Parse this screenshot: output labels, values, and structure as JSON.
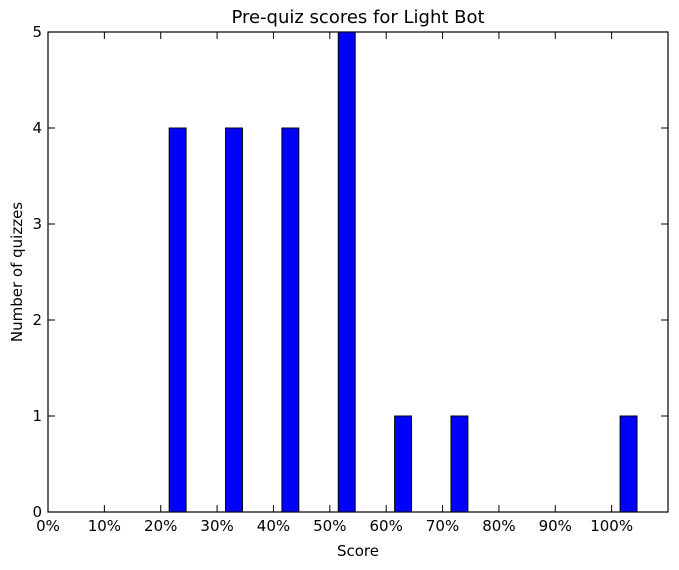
{
  "chart_data": {
    "type": "bar",
    "title": "Pre-quiz scores for Light Bot",
    "xlabel": "Score",
    "ylabel": "Number of quizzes",
    "x_ticks": [
      0,
      10,
      20,
      30,
      40,
      50,
      60,
      70,
      80,
      90,
      100
    ],
    "x_tick_labels": [
      "0%",
      "10%",
      "20%",
      "30%",
      "40%",
      "50%",
      "60%",
      "70%",
      "80%",
      "90%",
      "100%"
    ],
    "y_ticks": [
      0,
      1,
      2,
      3,
      4,
      5
    ],
    "y_tick_labels": [
      "0",
      "1",
      "2",
      "3",
      "4",
      "5"
    ],
    "x": [
      0,
      10,
      20,
      30,
      40,
      50,
      60,
      70,
      80,
      90,
      100
    ],
    "values": [
      0,
      0,
      4,
      4,
      4,
      5,
      1,
      1,
      0,
      0,
      1
    ],
    "xlim": [
      0,
      110
    ],
    "ylim": [
      0,
      5
    ],
    "bar_color": "#0000ff",
    "grid": false
  }
}
